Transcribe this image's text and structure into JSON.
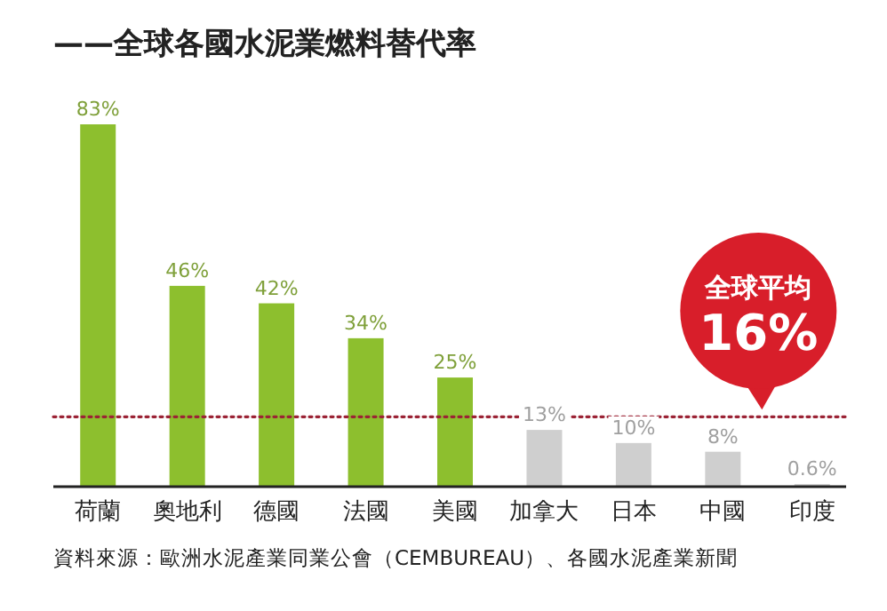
{
  "chart_data": {
    "type": "bar",
    "title": "——全球各國水泥業燃料替代率",
    "categories": [
      "荷蘭",
      "奧地利",
      "德國",
      "法國",
      "美國",
      "加拿大",
      "日本",
      "中國",
      "印度"
    ],
    "values": [
      83,
      46,
      42,
      34,
      25,
      13,
      10,
      8,
      0.6
    ],
    "colors": [
      "#8dbf2e",
      "#8dbf2e",
      "#8dbf2e",
      "#8dbf2e",
      "#8dbf2e",
      "#cfcfcf",
      "#cfcfcf",
      "#cfcfcf",
      "#cfcfcf"
    ],
    "value_labels": [
      "83%",
      "46%",
      "42%",
      "34%",
      "25%",
      "13%",
      "10%",
      "8%",
      "0.6%"
    ],
    "ref_lines": [
      {
        "axis": "y",
        "value": 16,
        "label": "全球平均\n16%",
        "color": "#9b2335",
        "line_style": "dotted"
      }
    ],
    "annotations": [
      "資料來源：歐洲水泥產業同業公會（CEMBUREAU）、各國水泥產業新聞"
    ]
  }
}
